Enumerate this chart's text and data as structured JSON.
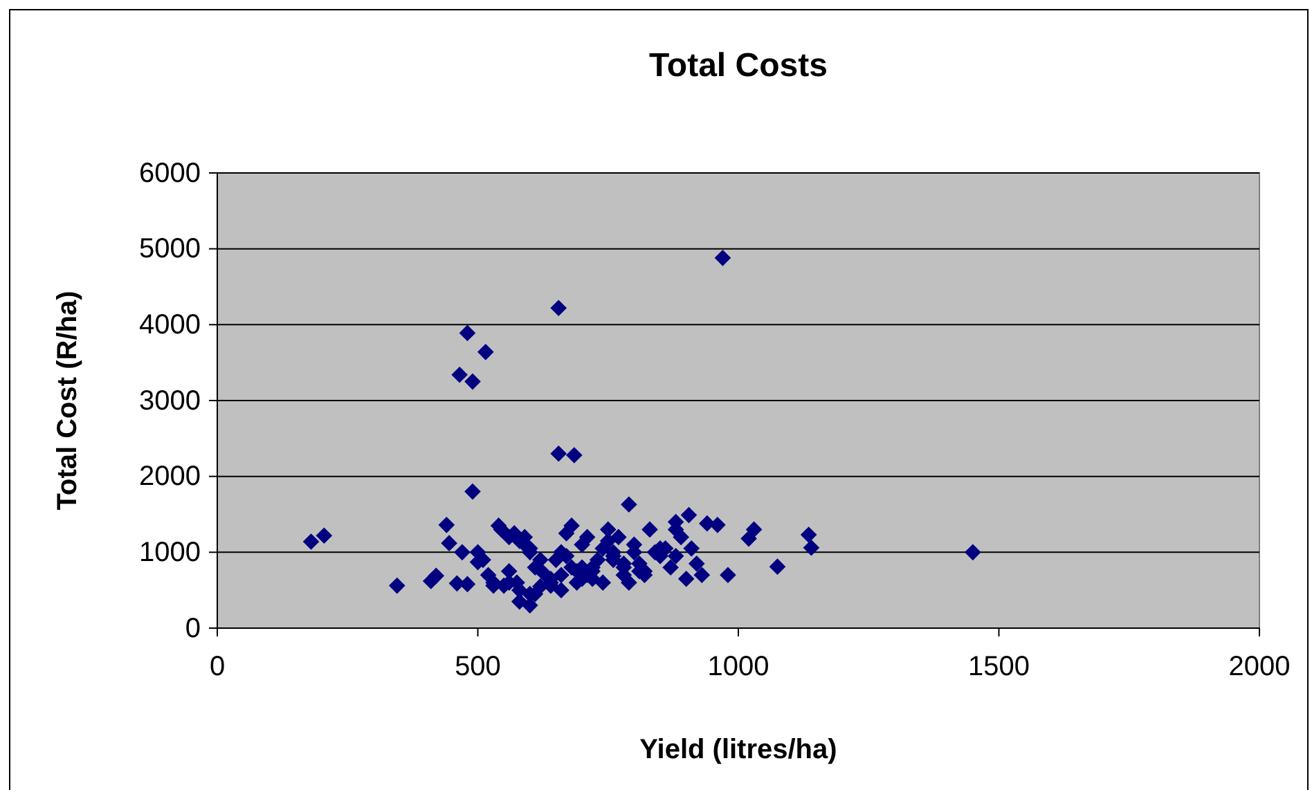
{
  "chart_data": {
    "type": "scatter",
    "title": "Total Costs",
    "xlabel": "Yield (litres/ha)",
    "ylabel": "Total Cost (R/ha)",
    "xlim": [
      0,
      2000
    ],
    "xticks": [
      0,
      500,
      1000,
      1500,
      2000
    ],
    "ylim": [
      0,
      6000
    ],
    "yticks": [
      0,
      1000,
      2000,
      3000,
      4000,
      5000,
      6000
    ],
    "grid": "y",
    "marker": "diamond",
    "series": [
      {
        "color": "#000080",
        "x": [
          970,
          655,
          480,
          515,
          465,
          490,
          655,
          685,
          490,
          790,
          180,
          205,
          345,
          440,
          445,
          410,
          420,
          460,
          480,
          500,
          520,
          540,
          550,
          560,
          570,
          580,
          590,
          600,
          610,
          620,
          500,
          530,
          545,
          560,
          575,
          590,
          600,
          615,
          630,
          640,
          650,
          660,
          670,
          680,
          690,
          700,
          710,
          720,
          730,
          740,
          750,
          760,
          770,
          780,
          790,
          800,
          810,
          820,
          830,
          840,
          850,
          860,
          870,
          880,
          890,
          900,
          910,
          920,
          930,
          940,
          960,
          980,
          1020,
          1030,
          1075,
          1135,
          1140,
          1450,
          640,
          660,
          680,
          700,
          720,
          740,
          760,
          780,
          800,
          820,
          580,
          600,
          620,
          640,
          660,
          580,
          600,
          700,
          720,
          750,
          780,
          810,
          850,
          880,
          905,
          470,
          510,
          530,
          560,
          610,
          670,
          690,
          710,
          760,
          880
        ],
        "values": [
          4880,
          4220,
          3890,
          3640,
          3340,
          3250,
          2300,
          2280,
          1800,
          1630,
          1140,
          1220,
          560,
          1360,
          1120,
          620,
          690,
          590,
          580,
          1000,
          700,
          1350,
          560,
          600,
          1250,
          350,
          1200,
          300,
          450,
          900,
          870,
          560,
          1300,
          750,
          600,
          1100,
          1000,
          800,
          700,
          560,
          900,
          1000,
          1250,
          1350,
          750,
          800,
          1200,
          650,
          900,
          1050,
          1300,
          1000,
          1200,
          700,
          600,
          1100,
          850,
          750,
          1300,
          1000,
          950,
          1050,
          800,
          1400,
          1200,
          650,
          1050,
          850,
          700,
          1380,
          1360,
          700,
          1180,
          1300,
          810,
          1230,
          1060,
          1000,
          600,
          700,
          800,
          650,
          750,
          600,
          900,
          800,
          1000,
          700,
          500,
          450,
          550,
          650,
          500,
          1150,
          1050,
          1100,
          800,
          1150,
          850,
          750,
          1050,
          950,
          1490,
          1000,
          900,
          600,
          1200,
          800,
          950,
          600,
          700,
          950,
          1300
        ]
      }
    ]
  }
}
